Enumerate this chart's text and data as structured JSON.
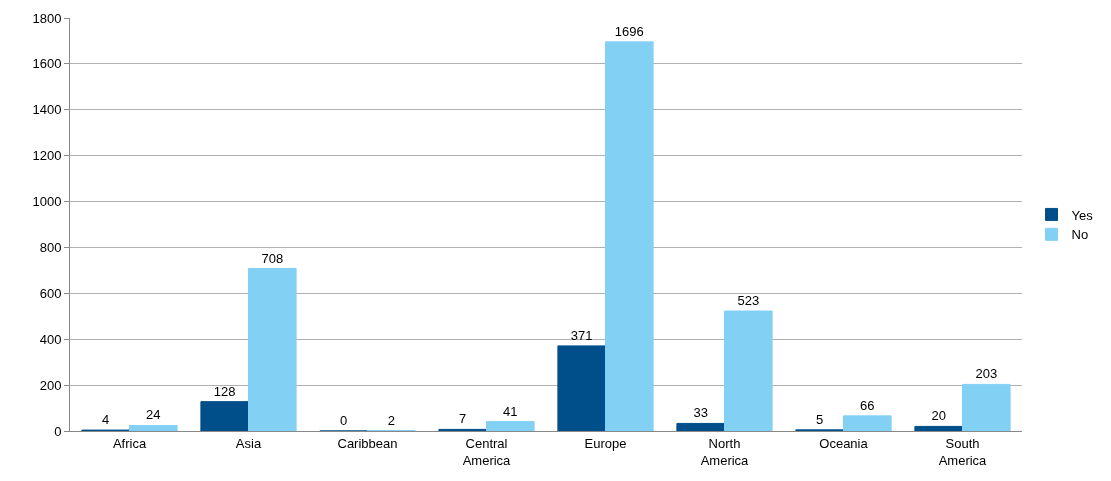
{
  "chart_data": {
    "type": "bar",
    "categories": [
      "Africa",
      "Asia",
      "Caribbean",
      "Central America",
      "Europe",
      "North America",
      "Oceania",
      "South America"
    ],
    "series": [
      {
        "name": "Yes",
        "color": "#004f8a",
        "values": [
          4,
          128,
          0,
          7,
          371,
          33,
          5,
          20
        ]
      },
      {
        "name": "No",
        "color": "#83d0f5",
        "values": [
          24,
          708,
          2,
          41,
          1696,
          523,
          66,
          203
        ]
      }
    ],
    "ylim": [
      0,
      1800
    ],
    "yticks": [
      0,
      200,
      400,
      600,
      800,
      1000,
      1200,
      1400,
      1600,
      1800
    ],
    "grid": "y",
    "legend": "right",
    "data_labels": true
  }
}
